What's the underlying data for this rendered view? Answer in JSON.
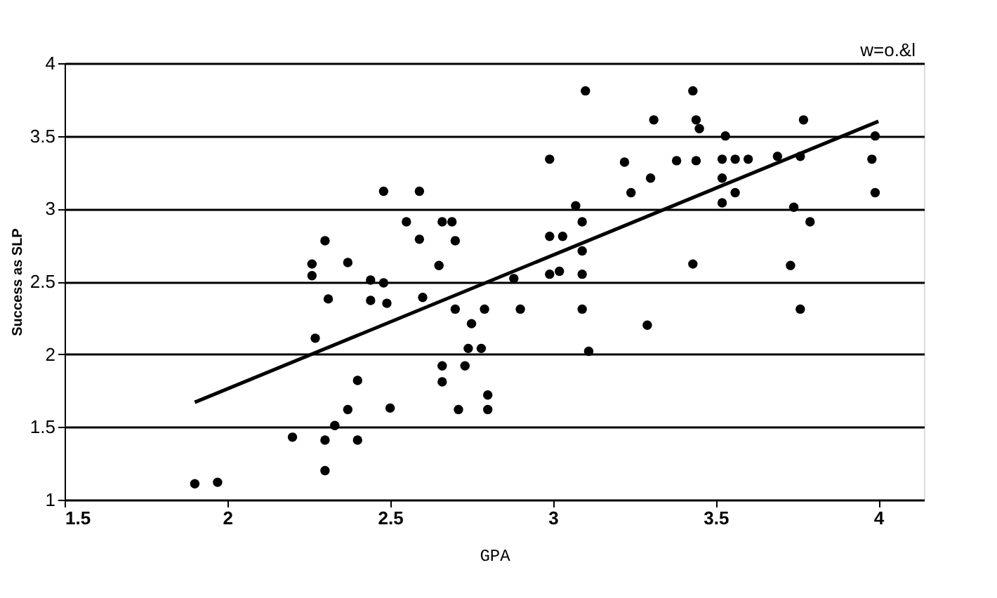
{
  "chart_data": {
    "type": "scatter",
    "xlabel": "GPA",
    "ylabel": "Success as SLP",
    "annotations": [
      "w=o.&l"
    ],
    "xlim": [
      1.5,
      4.14
    ],
    "ylim": [
      1,
      4
    ],
    "xticks": [
      1.5,
      2,
      2.5,
      3,
      3.5,
      4
    ],
    "yticks": [
      1,
      1.5,
      2,
      2.5,
      3,
      3.5,
      4
    ],
    "grid": "y",
    "series": [
      {
        "type": "scatter",
        "color": "#000000",
        "marker": "circle",
        "x": [
          1.9,
          1.97,
          2.2,
          2.3,
          2.3,
          2.33,
          2.4,
          2.37,
          2.4,
          2.5,
          2.27,
          2.66,
          2.66,
          2.71,
          2.73,
          2.74,
          2.78,
          2.8,
          2.8,
          2.75,
          2.79,
          2.7,
          2.6,
          2.31,
          2.44,
          2.49,
          2.48,
          2.59,
          2.55,
          2.66,
          2.69,
          2.59,
          2.7,
          2.3,
          2.26,
          2.37,
          2.65,
          2.26,
          2.44,
          2.48,
          3.1,
          3.43,
          3.31,
          3.44,
          3.45,
          3.53,
          3.77,
          3.99,
          2.99,
          3.22,
          3.38,
          3.44,
          3.52,
          3.56,
          3.6,
          3.69,
          3.76,
          3.98,
          3.3,
          3.52,
          3.24,
          3.56,
          3.99,
          3.52,
          3.07,
          3.74,
          3.09,
          3.79,
          2.99,
          3.03,
          3.09,
          3.43,
          3.73,
          2.88,
          2.99,
          3.02,
          3.09,
          2.9,
          3.09,
          3.76,
          3.29,
          3.11
        ],
        "values": [
          1.11,
          1.12,
          1.43,
          1.41,
          1.2,
          1.51,
          1.41,
          1.62,
          1.82,
          1.63,
          2.11,
          1.92,
          1.81,
          1.62,
          1.92,
          2.04,
          2.04,
          1.72,
          1.62,
          2.21,
          2.31,
          2.31,
          2.39,
          2.38,
          2.37,
          2.35,
          3.12,
          3.12,
          2.91,
          2.91,
          2.91,
          2.79,
          2.78,
          2.78,
          2.62,
          2.63,
          2.61,
          2.54,
          2.51,
          2.49,
          3.81,
          3.81,
          3.61,
          3.61,
          3.55,
          3.5,
          3.61,
          3.5,
          3.34,
          3.32,
          3.33,
          3.33,
          3.34,
          3.34,
          3.34,
          3.36,
          3.36,
          3.34,
          3.21,
          3.21,
          3.11,
          3.11,
          3.11,
          3.04,
          3.02,
          3.01,
          2.91,
          2.91,
          2.81,
          2.81,
          2.71,
          2.62,
          2.61,
          2.52,
          2.55,
          2.57,
          2.55,
          2.31,
          2.31,
          2.31,
          2.2,
          2.02
        ]
      },
      {
        "type": "line",
        "color": "#000000",
        "line_style": "solid",
        "marker": "none",
        "x": [
          1.9,
          4.0
        ],
        "values": [
          1.67,
          3.6
        ]
      }
    ]
  }
}
